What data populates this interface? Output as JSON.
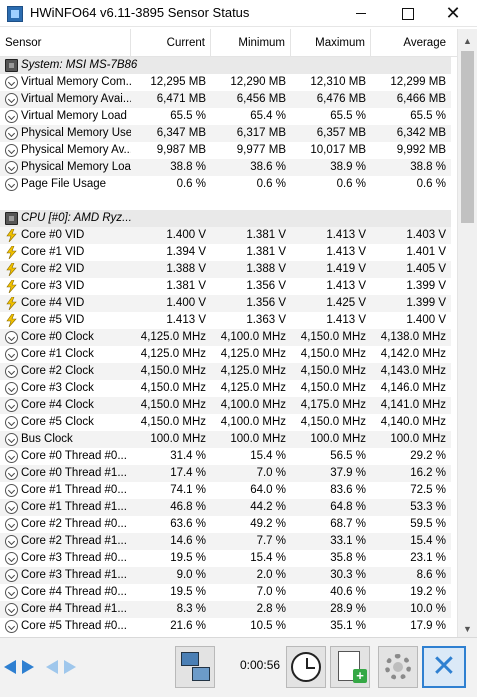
{
  "window": {
    "title": "HWiNFO64 v6.11-3895 Sensor Status",
    "controls": {
      "minimize_icon": "minimize-icon",
      "maximize_icon": "maximize-icon",
      "close_icon": "close-icon",
      "close_glyph": "✕"
    }
  },
  "columns": {
    "sensor": "Sensor",
    "current": "Current",
    "minimum": "Minimum",
    "maximum": "Maximum",
    "average": "Average"
  },
  "rows": [
    {
      "type": "group",
      "icon": "chip-icon",
      "name": "System: MSI MS-7B86"
    },
    {
      "type": "sensor",
      "icon": "clock-circle-icon",
      "name": "Virtual Memory Com...",
      "current": "12,295 MB",
      "minimum": "12,290 MB",
      "maximum": "12,310 MB",
      "average": "12,299 MB"
    },
    {
      "type": "sensor",
      "icon": "clock-circle-icon",
      "name": "Virtual Memory Avai...",
      "current": "6,471 MB",
      "minimum": "6,456 MB",
      "maximum": "6,476 MB",
      "average": "6,466 MB"
    },
    {
      "type": "sensor",
      "icon": "clock-circle-icon",
      "name": "Virtual Memory Load",
      "current": "65.5 %",
      "minimum": "65.4 %",
      "maximum": "65.5 %",
      "average": "65.5 %"
    },
    {
      "type": "sensor",
      "icon": "clock-circle-icon",
      "name": "Physical Memory Used",
      "current": "6,347 MB",
      "minimum": "6,317 MB",
      "maximum": "6,357 MB",
      "average": "6,342 MB"
    },
    {
      "type": "sensor",
      "icon": "clock-circle-icon",
      "name": "Physical Memory Av...",
      "current": "9,987 MB",
      "minimum": "9,977 MB",
      "maximum": "10,017 MB",
      "average": "9,992 MB"
    },
    {
      "type": "sensor",
      "icon": "clock-circle-icon",
      "name": "Physical Memory Load",
      "current": "38.8 %",
      "minimum": "38.6 %",
      "maximum": "38.9 %",
      "average": "38.8 %"
    },
    {
      "type": "sensor",
      "icon": "clock-circle-icon",
      "name": "Page File Usage",
      "current": "0.6 %",
      "minimum": "0.6 %",
      "maximum": "0.6 %",
      "average": "0.6 %"
    },
    {
      "type": "spacer"
    },
    {
      "type": "group",
      "icon": "chip-icon",
      "name": "CPU [#0]: AMD Ryz..."
    },
    {
      "type": "sensor",
      "icon": "voltage-bolt-icon",
      "name": "Core #0 VID",
      "current": "1.400 V",
      "minimum": "1.381 V",
      "maximum": "1.413 V",
      "average": "1.403 V"
    },
    {
      "type": "sensor",
      "icon": "voltage-bolt-icon",
      "name": "Core #1 VID",
      "current": "1.394 V",
      "minimum": "1.381 V",
      "maximum": "1.413 V",
      "average": "1.401 V"
    },
    {
      "type": "sensor",
      "icon": "voltage-bolt-icon",
      "name": "Core #2 VID",
      "current": "1.388 V",
      "minimum": "1.388 V",
      "maximum": "1.419 V",
      "average": "1.405 V"
    },
    {
      "type": "sensor",
      "icon": "voltage-bolt-icon",
      "name": "Core #3 VID",
      "current": "1.381 V",
      "minimum": "1.356 V",
      "maximum": "1.413 V",
      "average": "1.399 V"
    },
    {
      "type": "sensor",
      "icon": "voltage-bolt-icon",
      "name": "Core #4 VID",
      "current": "1.400 V",
      "minimum": "1.356 V",
      "maximum": "1.425 V",
      "average": "1.399 V"
    },
    {
      "type": "sensor",
      "icon": "voltage-bolt-icon",
      "name": "Core #5 VID",
      "current": "1.413 V",
      "minimum": "1.363 V",
      "maximum": "1.413 V",
      "average": "1.400 V"
    },
    {
      "type": "sensor",
      "icon": "clock-circle-icon",
      "name": "Core #0 Clock",
      "current": "4,125.0 MHz",
      "minimum": "4,100.0 MHz",
      "maximum": "4,150.0 MHz",
      "average": "4,138.0 MHz"
    },
    {
      "type": "sensor",
      "icon": "clock-circle-icon",
      "name": "Core #1 Clock",
      "current": "4,125.0 MHz",
      "minimum": "4,125.0 MHz",
      "maximum": "4,150.0 MHz",
      "average": "4,142.0 MHz"
    },
    {
      "type": "sensor",
      "icon": "clock-circle-icon",
      "name": "Core #2 Clock",
      "current": "4,150.0 MHz",
      "minimum": "4,125.0 MHz",
      "maximum": "4,150.0 MHz",
      "average": "4,143.0 MHz"
    },
    {
      "type": "sensor",
      "icon": "clock-circle-icon",
      "name": "Core #3 Clock",
      "current": "4,150.0 MHz",
      "minimum": "4,125.0 MHz",
      "maximum": "4,150.0 MHz",
      "average": "4,146.0 MHz"
    },
    {
      "type": "sensor",
      "icon": "clock-circle-icon",
      "name": "Core #4 Clock",
      "current": "4,150.0 MHz",
      "minimum": "4,100.0 MHz",
      "maximum": "4,175.0 MHz",
      "average": "4,141.0 MHz"
    },
    {
      "type": "sensor",
      "icon": "clock-circle-icon",
      "name": "Core #5 Clock",
      "current": "4,150.0 MHz",
      "minimum": "4,100.0 MHz",
      "maximum": "4,150.0 MHz",
      "average": "4,140.0 MHz"
    },
    {
      "type": "sensor",
      "icon": "clock-circle-icon",
      "name": "Bus Clock",
      "current": "100.0 MHz",
      "minimum": "100.0 MHz",
      "maximum": "100.0 MHz",
      "average": "100.0 MHz"
    },
    {
      "type": "sensor",
      "icon": "clock-circle-icon",
      "name": "Core #0 Thread #0...",
      "current": "31.4 %",
      "minimum": "15.4 %",
      "maximum": "56.5 %",
      "average": "29.2 %"
    },
    {
      "type": "sensor",
      "icon": "clock-circle-icon",
      "name": "Core #0 Thread #1...",
      "current": "17.4 %",
      "minimum": "7.0 %",
      "maximum": "37.9 %",
      "average": "16.2 %"
    },
    {
      "type": "sensor",
      "icon": "clock-circle-icon",
      "name": "Core #1 Thread #0...",
      "current": "74.1 %",
      "minimum": "64.0 %",
      "maximum": "83.6 %",
      "average": "72.5 %"
    },
    {
      "type": "sensor",
      "icon": "clock-circle-icon",
      "name": "Core #1 Thread #1...",
      "current": "46.8 %",
      "minimum": "44.2 %",
      "maximum": "64.8 %",
      "average": "53.3 %"
    },
    {
      "type": "sensor",
      "icon": "clock-circle-icon",
      "name": "Core #2 Thread #0...",
      "current": "63.6 %",
      "minimum": "49.2 %",
      "maximum": "68.7 %",
      "average": "59.5 %"
    },
    {
      "type": "sensor",
      "icon": "clock-circle-icon",
      "name": "Core #2 Thread #1...",
      "current": "14.6 %",
      "minimum": "7.7 %",
      "maximum": "33.1 %",
      "average": "15.4 %"
    },
    {
      "type": "sensor",
      "icon": "clock-circle-icon",
      "name": "Core #3 Thread #0...",
      "current": "19.5 %",
      "minimum": "15.4 %",
      "maximum": "35.8 %",
      "average": "23.1 %"
    },
    {
      "type": "sensor",
      "icon": "clock-circle-icon",
      "name": "Core #3 Thread #1...",
      "current": "9.0 %",
      "minimum": "2.0 %",
      "maximum": "30.3 %",
      "average": "8.6 %"
    },
    {
      "type": "sensor",
      "icon": "clock-circle-icon",
      "name": "Core #4 Thread #0...",
      "current": "19.5 %",
      "minimum": "7.0 %",
      "maximum": "40.6 %",
      "average": "19.2 %"
    },
    {
      "type": "sensor",
      "icon": "clock-circle-icon",
      "name": "Core #4 Thread #1...",
      "current": "8.3 %",
      "minimum": "2.8 %",
      "maximum": "28.9 %",
      "average": "10.0 %"
    },
    {
      "type": "sensor",
      "icon": "clock-circle-icon",
      "name": "Core #5 Thread #0...",
      "current": "21.6 %",
      "minimum": "10.5 %",
      "maximum": "35.1 %",
      "average": "17.9 %"
    }
  ],
  "scrollbar": {
    "up_icon": "scroll-up-icon",
    "down_icon": "scroll-down-icon",
    "up_glyph": "▲",
    "down_glyph": "▼"
  },
  "toolbar": {
    "nav_left_icon": "navigate-arrows-icon",
    "nav_right_icon": "navigate-arrows-disabled-icon",
    "network_icon": "network-icon",
    "elapsed": "0:00:56",
    "reset_icon": "clock-reset-icon",
    "report_icon": "log-file-add-icon",
    "report_plus": "+",
    "settings_icon": "settings-gear-icon",
    "close_icon": "close-x-icon",
    "close_glyph": "✕"
  }
}
